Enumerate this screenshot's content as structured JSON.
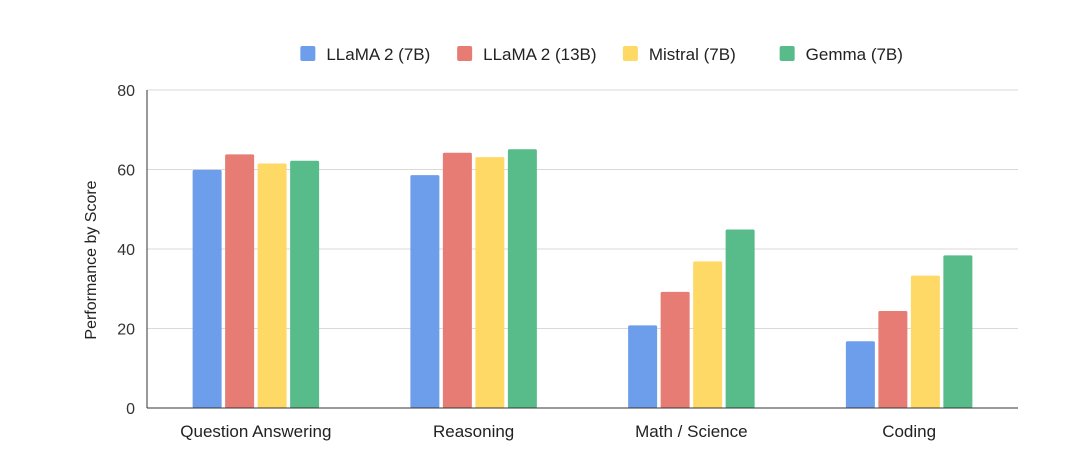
{
  "chart_data": {
    "type": "bar",
    "title": "",
    "xlabel": "",
    "ylabel": "Performance by Score",
    "ylim": [
      0,
      80
    ],
    "yticks": [
      0,
      20,
      40,
      60,
      80
    ],
    "grid": true,
    "legend_position": "top",
    "categories": [
      "Question Answering",
      "Reasoning",
      "Math / Science",
      "Coding"
    ],
    "series": [
      {
        "name": "LLaMA 2 (7B)",
        "color": "#6d9eeb",
        "values": [
          59.9,
          58.6,
          20.8,
          16.8
        ]
      },
      {
        "name": "LLaMA 2 (13B)",
        "color": "#e67c73",
        "values": [
          63.8,
          64.2,
          29.2,
          24.4
        ]
      },
      {
        "name": "Mistral (7B)",
        "color": "#ffd966",
        "values": [
          61.5,
          63.1,
          36.9,
          33.3
        ]
      },
      {
        "name": "Gemma (7B)",
        "color": "#57bb8a",
        "values": [
          62.2,
          65.1,
          44.9,
          38.4
        ]
      }
    ]
  }
}
